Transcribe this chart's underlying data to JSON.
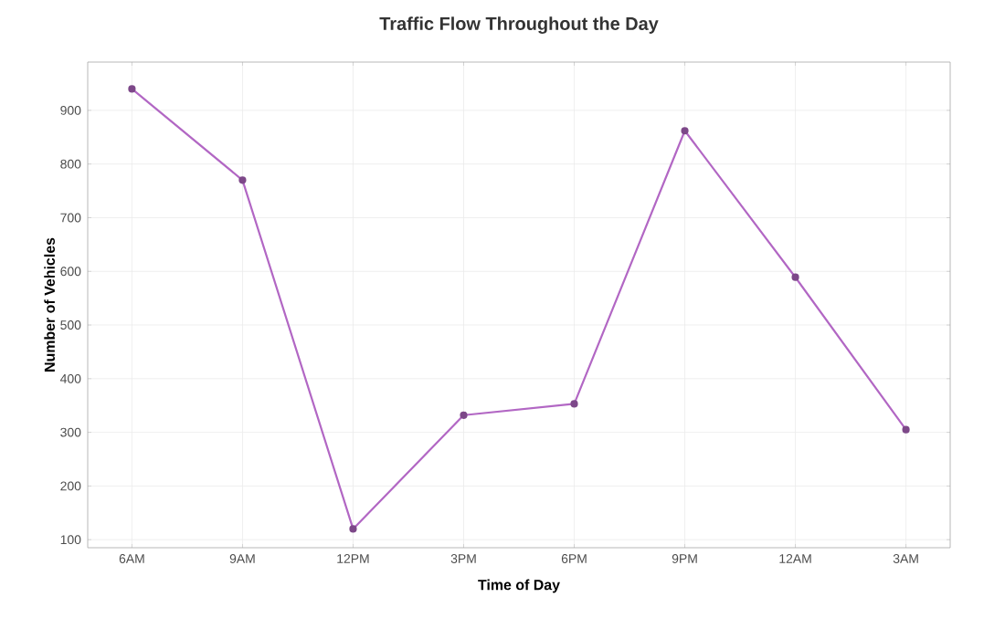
{
  "chart_data": {
    "type": "line",
    "title": "Traffic Flow Throughout the Day",
    "xlabel": "Time of Day",
    "ylabel": "Number of Vehicles",
    "categories": [
      "6AM",
      "9AM",
      "12PM",
      "3PM",
      "6PM",
      "9PM",
      "12AM",
      "3AM"
    ],
    "series": [
      {
        "color": "#b267c4",
        "values": [
          940,
          770,
          120,
          332,
          353,
          862,
          589,
          305
        ]
      }
    ],
    "ylim": [
      85,
      990
    ],
    "yticks": [
      100,
      200,
      300,
      400,
      500,
      600,
      700,
      800,
      900
    ],
    "grid": true,
    "marker": "circle",
    "line_style": "solid"
  }
}
